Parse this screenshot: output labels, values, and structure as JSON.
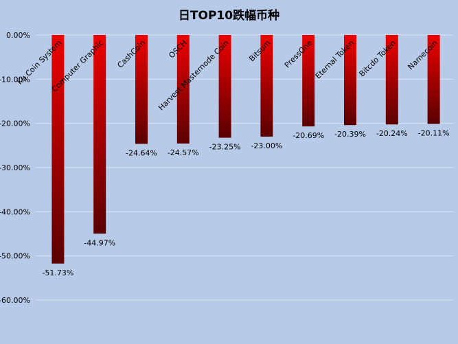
{
  "chart_data": {
    "type": "bar",
    "title": "日TOP10跌幅币种",
    "categories": [
      "Ku Coin System",
      "Computer Graphic",
      "CashCoin",
      "OSCH",
      "Harvest Masternode Coin",
      "Bitsum",
      "PressOne",
      "Eternal Token",
      "Bitcdo Token",
      "Namecoin"
    ],
    "values": [
      -51.73,
      -44.97,
      -24.64,
      -24.57,
      -23.25,
      -23.0,
      -20.69,
      -20.39,
      -20.24,
      -20.11
    ],
    "value_labels": [
      "-51.73%",
      "-44.97%",
      "-24.64%",
      "-24.57%",
      "-23.25%",
      "-23.00%",
      "-20.69%",
      "-20.39%",
      "-20.24%",
      "-20.11%"
    ],
    "yticks": [
      "0.00%",
      "-10.00%",
      "-20.00%",
      "-30.00%",
      "-40.00%",
      "-50.00%",
      "-60.00%"
    ],
    "ytick_values": [
      0,
      -10,
      -20,
      -30,
      -40,
      -50,
      -60
    ],
    "ylim": [
      -60,
      0
    ],
    "grid": true,
    "colors": {
      "bar_top": "#ee0000",
      "bar_bottom": "#5a0000",
      "background": "#b7cbe8",
      "grid": "#dde6f3"
    }
  }
}
